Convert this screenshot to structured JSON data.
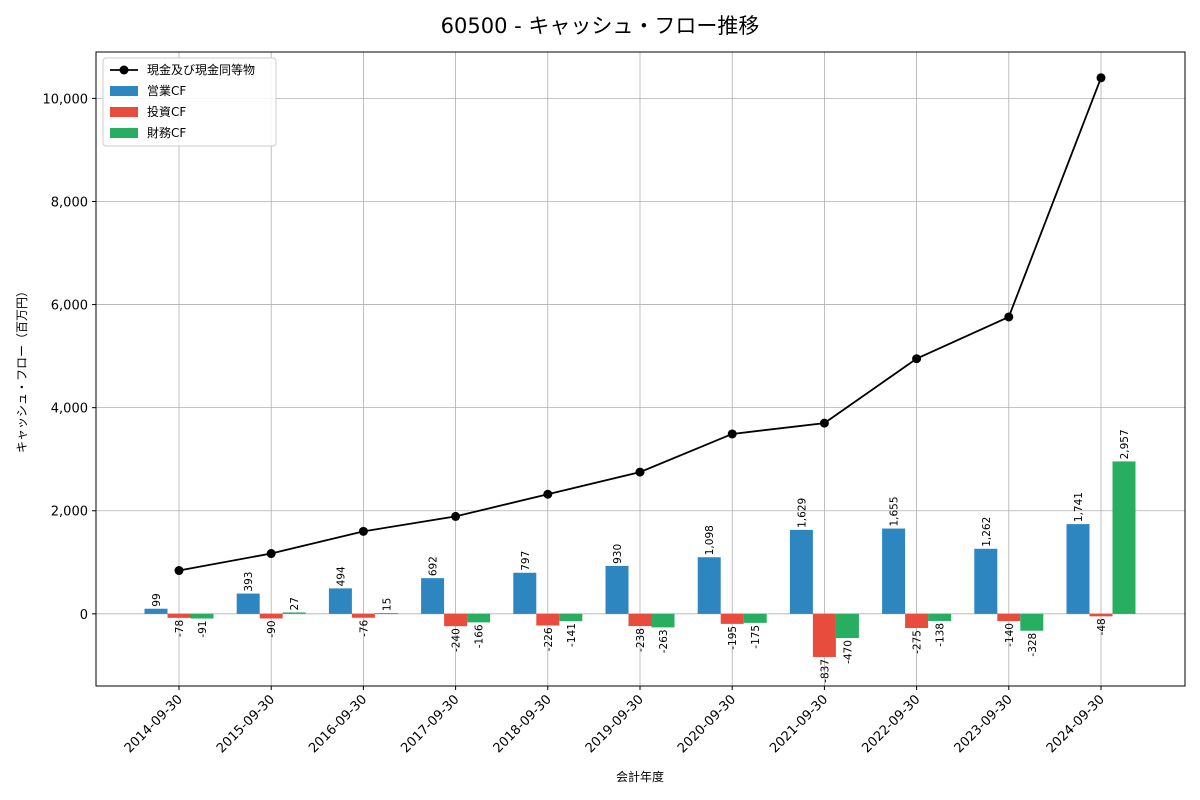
{
  "chart_data": {
    "type": "bar",
    "title": "60500 - キャッシュ・フロー推移",
    "xlabel": "会計年度",
    "ylabel": "キャッシュ・フロー（百万円）",
    "categories": [
      "2014-09-30",
      "2015-09-30",
      "2016-09-30",
      "2017-09-30",
      "2018-09-30",
      "2019-09-30",
      "2020-09-30",
      "2021-09-30",
      "2022-09-30",
      "2023-09-30",
      "2024-09-30"
    ],
    "ylim": [
      -1400,
      10900
    ],
    "yticks": [
      0,
      2000,
      4000,
      6000,
      8000,
      10000
    ],
    "ytick_labels": [
      "0",
      "2,000",
      "4,000",
      "6,000",
      "8,000",
      "10,000"
    ],
    "grid": true,
    "legend_position": "top-left",
    "line_series": {
      "name": "現金及び現金同等物",
      "color": "#000000",
      "values": [
        840,
        1170,
        1600,
        1890,
        2320,
        2750,
        3490,
        3700,
        4950,
        5760,
        10400
      ]
    },
    "series": [
      {
        "name": "営業CF",
        "color": "#2e86c1",
        "values": [
          99,
          393,
          494,
          692,
          797,
          930,
          1098,
          1629,
          1655,
          1262,
          1741
        ],
        "labels": [
          "99",
          "393",
          "494",
          "692",
          "797",
          "930",
          "1,098",
          "1,629",
          "1,655",
          "1,262",
          "1,741"
        ]
      },
      {
        "name": "投資CF",
        "color": "#e74c3c",
        "values": [
          -78,
          -90,
          -76,
          -240,
          -226,
          -238,
          -195,
          -837,
          -275,
          -140,
          -48
        ],
        "labels": [
          "-78",
          "-90",
          "-76",
          "-240",
          "-226",
          "-238",
          "-195",
          "-837",
          "-275",
          "-140",
          "-48"
        ]
      },
      {
        "name": "財務CF",
        "color": "#27ae60",
        "values": [
          -91,
          27,
          15,
          -166,
          -141,
          -263,
          -175,
          -470,
          -138,
          -328,
          2957
        ],
        "labels": [
          "-91",
          "27",
          "15",
          "-166",
          "-141",
          "-263",
          "-175",
          "-470",
          "-138",
          "-328",
          "2,957"
        ]
      }
    ]
  }
}
